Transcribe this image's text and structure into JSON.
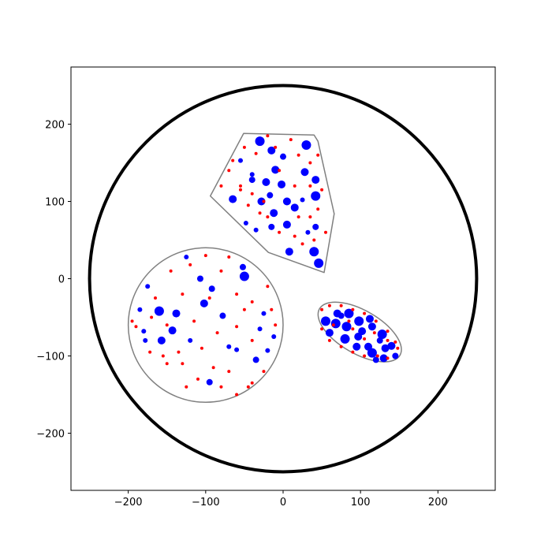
{
  "chart_data": {
    "type": "scatter",
    "xlim": [
      -274,
      274
    ],
    "ylim": [
      -274,
      274
    ],
    "xticks": [
      {
        "value": -200,
        "label": "−200"
      },
      {
        "value": -100,
        "label": "−100"
      },
      0,
      100,
      200
    ],
    "yticks": [
      {
        "value": -200,
        "label": "−200"
      },
      {
        "value": -100,
        "label": "−100"
      },
      0,
      100,
      200
    ],
    "shapes": [
      {
        "type": "circle",
        "center": [
          0,
          0
        ],
        "radius": 250,
        "color": "black",
        "width": 4
      },
      {
        "type": "circle",
        "center": [
          -100,
          -60
        ],
        "radius": 100,
        "color": "gray",
        "width": 1.5
      },
      {
        "type": "polygon",
        "points": [
          [
            -51,
            188
          ],
          [
            40,
            186
          ],
          [
            45,
            178
          ],
          [
            66,
            84
          ],
          [
            53,
            8
          ],
          [
            -19,
            34
          ],
          [
            -94,
            107
          ]
        ],
        "color": "gray",
        "width": 1.5
      },
      {
        "type": "ellipse",
        "center": [
          99,
          -69
        ],
        "rx": 60,
        "ry": 28,
        "angle": -30,
        "color": "gray",
        "width": 1.5
      }
    ],
    "series": [
      {
        "color": "blue",
        "x": [
          -160,
          -143,
          -157,
          -102,
          -92,
          -107,
          -50,
          -52,
          -125,
          -138,
          -120,
          -95,
          -70,
          -35,
          -25,
          -180,
          -185,
          -178,
          -78,
          -20,
          -12,
          -60,
          -30,
          -175,
          -30,
          -15,
          0,
          30,
          -10,
          28,
          42,
          42,
          -40,
          -22,
          -2,
          -17,
          -65,
          -28,
          5,
          15,
          -12,
          5,
          -15,
          -35,
          -48,
          40,
          46,
          8,
          42,
          32,
          -55,
          -40,
          25,
          55,
          68,
          82,
          98,
          112,
          85,
          70,
          60,
          80,
          97,
          115,
          128,
          95,
          110,
          132,
          140,
          115,
          130,
          145,
          125,
          102,
          120,
          75
        ],
        "values": [
          -42,
          -67,
          -80,
          -32,
          -13,
          0,
          3,
          15,
          28,
          -45,
          -80,
          -134,
          -88,
          -105,
          -45,
          -68,
          -40,
          -80,
          -48,
          -93,
          -75,
          -92,
          -65,
          -10,
          178,
          166,
          158,
          173,
          141,
          138,
          128,
          107,
          128,
          125,
          122,
          108,
          103,
          100,
          100,
          92,
          85,
          70,
          67,
          63,
          72,
          35,
          20,
          35,
          67,
          60,
          153,
          135,
          102,
          -55,
          -58,
          -62,
          -55,
          -52,
          -45,
          -45,
          -70,
          -78,
          -75,
          -62,
          -72,
          -88,
          -88,
          -90,
          -87,
          -96,
          -103,
          -100,
          -80,
          -68,
          -105,
          -48
        ],
        "sizes": [
          6,
          5,
          5,
          5,
          4,
          4,
          6,
          4,
          3,
          5,
          3,
          4,
          3,
          4,
          3,
          3,
          3,
          3,
          4,
          3,
          3,
          3,
          3,
          3,
          6,
          5,
          4,
          6,
          5,
          5,
          5,
          6,
          4,
          5,
          5,
          4,
          5,
          5,
          5,
          5,
          5,
          5,
          4,
          3,
          3,
          6,
          6,
          5,
          4,
          3,
          3,
          3,
          3,
          6,
          6,
          6,
          6,
          5,
          6,
          5,
          5,
          6,
          5,
          5,
          6,
          5,
          5,
          5,
          5,
          6,
          5,
          4,
          4,
          5,
          4,
          4
        ]
      },
      {
        "color": "red",
        "x": [
          -190,
          -172,
          -150,
          -130,
          -110,
          -90,
          -60,
          -40,
          -25,
          -10,
          -15,
          -40,
          -60,
          -80,
          -100,
          -120,
          -145,
          -165,
          -135,
          -105,
          -85,
          -60,
          -115,
          -150,
          -40,
          -70,
          -170,
          -95,
          -130,
          -50,
          -20,
          -80,
          -125,
          -195,
          -155,
          -70,
          -45,
          -65,
          -50,
          -35,
          -20,
          10,
          20,
          35,
          45,
          -70,
          -80,
          -55,
          -45,
          -30,
          -20,
          -5,
          15,
          25,
          35,
          45,
          50,
          15,
          -5,
          40,
          55,
          -25,
          20,
          -55,
          35,
          -10,
          -40,
          50,
          60,
          75,
          90,
          105,
          120,
          135,
          145,
          148,
          135,
          122,
          105,
          90,
          75,
          60,
          50,
          65,
          90,
          105,
          118,
          135,
          85
        ],
        "values": [
          -62,
          -95,
          -110,
          -110,
          -130,
          -115,
          -150,
          -135,
          -120,
          -60,
          -40,
          -30,
          -20,
          10,
          30,
          18,
          10,
          -25,
          -95,
          -90,
          -70,
          -62,
          -55,
          -60,
          -80,
          -120,
          -50,
          -25,
          -20,
          -40,
          -10,
          -140,
          -140,
          -55,
          -100,
          28,
          -140,
          153,
          170,
          162,
          185,
          180,
          160,
          150,
          160,
          140,
          120,
          115,
          95,
          85,
          80,
          60,
          55,
          45,
          80,
          90,
          115,
          120,
          140,
          50,
          60,
          100,
          80,
          120,
          120,
          170,
          110,
          -40,
          -35,
          -35,
          -40,
          -45,
          -55,
          -68,
          -82,
          -90,
          -103,
          -100,
          -100,
          -95,
          -88,
          -80,
          -65,
          -60,
          -65,
          -78,
          -70,
          -80,
          -55
        ],
        "size": 2
      }
    ]
  }
}
